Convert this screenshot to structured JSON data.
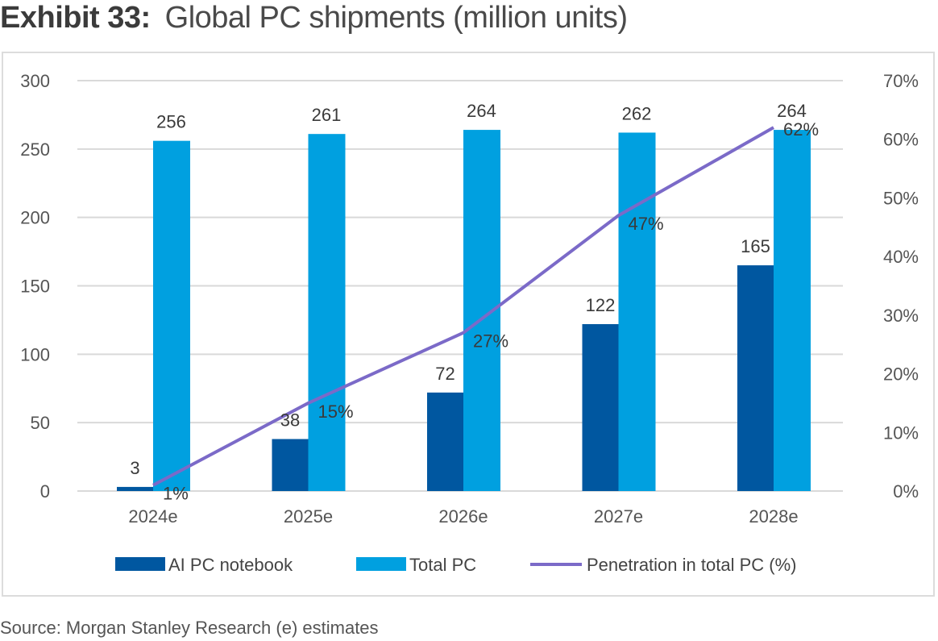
{
  "header": {
    "exhibit_label": "Exhibit 33:",
    "title": "Global PC shipments (million units)"
  },
  "source": "Source: Morgan Stanley Research (e) estimates",
  "colors": {
    "ai_pc": "#0057a0",
    "total_pc": "#00a0e0",
    "penetration": "#7b6ac8",
    "grid": "#d9d9d9"
  },
  "chart_data": {
    "type": "bar",
    "title": "Global PC shipments (million units)",
    "xlabel": "",
    "ylabel": "",
    "categories": [
      "2024e",
      "2025e",
      "2026e",
      "2027e",
      "2028e"
    ],
    "series": [
      {
        "name": "AI PC notebook",
        "type": "bar",
        "axis": "left",
        "values": [
          3,
          38,
          72,
          122,
          165
        ],
        "labels": [
          "3",
          "38",
          "72",
          "122",
          "165"
        ]
      },
      {
        "name": "Total PC",
        "type": "bar",
        "axis": "left",
        "values": [
          256,
          261,
          264,
          262,
          264
        ],
        "labels": [
          "256",
          "261",
          "264",
          "262",
          "264"
        ]
      },
      {
        "name": "Penetration in total PC (%)",
        "type": "line",
        "axis": "right",
        "values": [
          1,
          15,
          27,
          47,
          62
        ],
        "labels": [
          "1%",
          "15%",
          "27%",
          "47%",
          "62%"
        ]
      }
    ],
    "ylim": [
      0,
      300
    ],
    "yticks": [
      "0",
      "50",
      "100",
      "150",
      "200",
      "250",
      "300"
    ],
    "ytick_values": [
      0,
      50,
      100,
      150,
      200,
      250,
      300
    ],
    "y2lim": [
      0,
      70
    ],
    "y2ticks": [
      "0%",
      "10%",
      "20%",
      "30%",
      "40%",
      "50%",
      "60%",
      "70%"
    ],
    "y2tick_values": [
      0,
      10,
      20,
      30,
      40,
      50,
      60,
      70
    ],
    "grid": true,
    "legend": {
      "placement": "bottom",
      "items": [
        "AI PC notebook",
        "Total PC",
        "Penetration in total PC (%)"
      ]
    }
  }
}
